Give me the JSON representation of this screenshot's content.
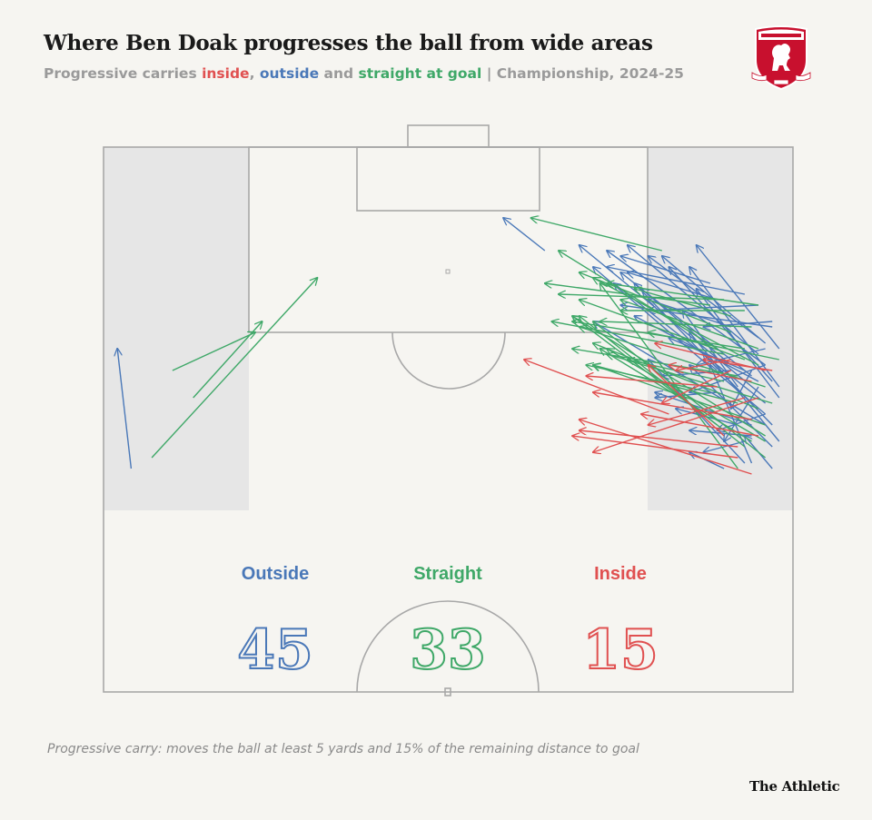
{
  "header": {
    "title": "Where Ben Doak progresses the ball from wide areas",
    "subtitle_prefix": "Progressive carries ",
    "subtitle_inside": "inside",
    "subtitle_sep1": ", ",
    "subtitle_outside": "outside",
    "subtitle_and": " and ",
    "subtitle_straight": "straight at goal",
    "subtitle_suffix": " | Championship, 2024-25"
  },
  "crest": {
    "icon": "middlesbrough-crest-icon",
    "color": "#c8102e"
  },
  "colors": {
    "outside": "#4a78b8",
    "straight": "#3fa868",
    "inside": "#e05050",
    "pitch_line": "#a8a8a8",
    "wide_zone": "#e6e6e6",
    "background": "#f6f5f1"
  },
  "chart_data": {
    "type": "carry-map",
    "xlabel": "",
    "ylabel": "",
    "xlim": [
      0,
      100
    ],
    "ylim": [
      0,
      100
    ],
    "categories": [
      "Outside",
      "Straight",
      "Inside"
    ],
    "totals": [
      45,
      33,
      15
    ],
    "series": [
      {
        "name": "Outside",
        "count": "45",
        "carries": [
          [
            4,
            41,
            2,
            63
          ],
          [
            96,
            54,
            69,
            82
          ],
          [
            96,
            60,
            73,
            81
          ],
          [
            95,
            62,
            76,
            82
          ],
          [
            96,
            51,
            71,
            78
          ],
          [
            95,
            65,
            79,
            80
          ],
          [
            96,
            64,
            81,
            80
          ],
          [
            98,
            56,
            85,
            78
          ],
          [
            97,
            57,
            82,
            78
          ],
          [
            97,
            49,
            77,
            75
          ],
          [
            98,
            54,
            86,
            74
          ],
          [
            96,
            53,
            74,
            75
          ],
          [
            94,
            58,
            75,
            77
          ],
          [
            97,
            67,
            75,
            71
          ],
          [
            96,
            49,
            71,
            68
          ],
          [
            93,
            73,
            73,
            78
          ],
          [
            98,
            63,
            86,
            82
          ],
          [
            98,
            46,
            85,
            66
          ],
          [
            95,
            71,
            79,
            70
          ],
          [
            95,
            57,
            77,
            69
          ],
          [
            97,
            68,
            87,
            67
          ],
          [
            93,
            59,
            82,
            65
          ],
          [
            93,
            42,
            79,
            61
          ],
          [
            97,
            45,
            85,
            60
          ],
          [
            96,
            63,
            86,
            60
          ],
          [
            94,
            49,
            80,
            55
          ],
          [
            96,
            60,
            85,
            55
          ],
          [
            91,
            60,
            78,
            74
          ],
          [
            88,
            75,
            75,
            80
          ],
          [
            91,
            67,
            79,
            72
          ],
          [
            89,
            72,
            76,
            77
          ],
          [
            89,
            55,
            80,
            54
          ],
          [
            91,
            59,
            81,
            58
          ],
          [
            94,
            53,
            87,
            62
          ],
          [
            92,
            49,
            83,
            52
          ],
          [
            94,
            47,
            85,
            48
          ],
          [
            96,
            51,
            89,
            48
          ],
          [
            95,
            56,
            90,
            46
          ],
          [
            93,
            46,
            87,
            44
          ],
          [
            94,
            59,
            91,
            52
          ],
          [
            90,
            41,
            85,
            44
          ],
          [
            94,
            42,
            88,
            60
          ],
          [
            97,
            41,
            93,
            47
          ],
          [
            64,
            81,
            58,
            87
          ],
          [
            92,
            56,
            84,
            70
          ]
        ]
      },
      {
        "name": "Straight",
        "count": "33",
        "carries": [
          [
            7,
            43,
            31,
            76
          ],
          [
            13,
            54,
            23,
            68
          ],
          [
            10,
            59,
            22,
            66
          ],
          [
            81,
            81,
            62,
            87
          ],
          [
            89,
            63,
            66,
            81
          ],
          [
            95,
            60,
            71,
            76
          ],
          [
            93,
            61,
            69,
            72
          ],
          [
            91,
            66,
            69,
            77
          ],
          [
            90,
            72,
            66,
            73
          ],
          [
            88,
            71,
            64,
            75
          ],
          [
            90,
            62,
            65,
            68
          ],
          [
            93,
            63,
            68,
            68
          ],
          [
            96,
            56,
            69,
            67
          ],
          [
            97,
            53,
            73,
            62
          ],
          [
            98,
            61,
            79,
            66
          ],
          [
            95,
            71,
            73,
            75
          ],
          [
            95,
            63,
            75,
            72
          ],
          [
            94,
            67,
            72,
            68
          ],
          [
            96,
            47,
            68,
            69
          ],
          [
            95,
            52,
            71,
            64
          ],
          [
            92,
            58,
            68,
            63
          ],
          [
            96,
            49,
            71,
            60
          ],
          [
            88,
            55,
            70,
            60
          ],
          [
            90,
            57,
            76,
            61
          ],
          [
            89,
            49,
            68,
            69
          ],
          [
            93,
            45,
            69,
            69
          ],
          [
            96,
            43,
            71,
            68
          ],
          [
            92,
            53,
            71,
            60
          ],
          [
            91,
            69,
            77,
            74
          ],
          [
            93,
            70,
            75,
            70
          ],
          [
            94,
            46,
            72,
            63
          ],
          [
            96,
            46,
            73,
            63
          ],
          [
            92,
            41,
            72,
            75
          ]
        ]
      },
      {
        "name": "Inside",
        "count": "15",
        "carries": [
          [
            90,
            47,
            79,
            60
          ],
          [
            91,
            59,
            81,
            53
          ],
          [
            93,
            54,
            79,
            49
          ],
          [
            95,
            47,
            78,
            51
          ],
          [
            94,
            57,
            82,
            60
          ],
          [
            96,
            59,
            80,
            64
          ],
          [
            97,
            59,
            87,
            61
          ],
          [
            91,
            61,
            83,
            59
          ],
          [
            94,
            50,
            71,
            55
          ],
          [
            89,
            56,
            70,
            58
          ],
          [
            92,
            45,
            69,
            48
          ],
          [
            95,
            54,
            71,
            44
          ],
          [
            92,
            43,
            68,
            47
          ],
          [
            94,
            40,
            69,
            50
          ],
          [
            82,
            51,
            61,
            61
          ]
        ]
      }
    ]
  },
  "labels": {
    "outside_label": "Outside",
    "straight_label": "Straight",
    "inside_label": "Inside",
    "outside_count": "45",
    "straight_count": "33",
    "inside_count": "15"
  },
  "footnote": "Progressive carry: moves the ball at least 5 yards and 15% of the remaining distance to goal",
  "brand": "The Athletic"
}
